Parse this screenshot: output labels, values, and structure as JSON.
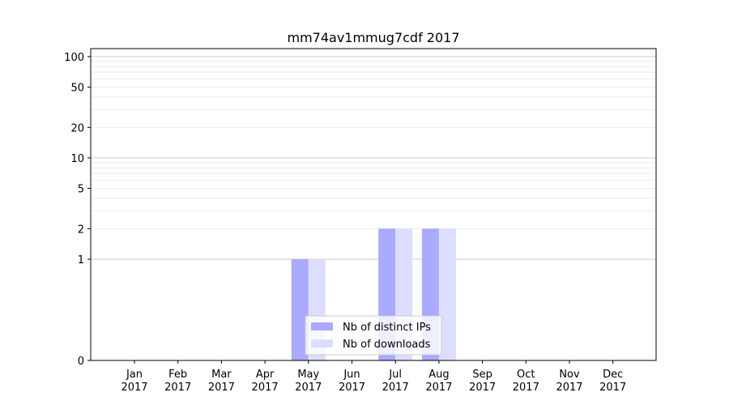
{
  "chart_data": {
    "type": "bar",
    "title": "mm74av1mmug7cdf 2017",
    "categories": [
      "Jan",
      "Feb",
      "Mar",
      "Apr",
      "May",
      "Jun",
      "Jul",
      "Aug",
      "Sep",
      "Oct",
      "Nov",
      "Dec"
    ],
    "category_years": [
      "2017",
      "2017",
      "2017",
      "2017",
      "2017",
      "2017",
      "2017",
      "2017",
      "2017",
      "2017",
      "2017",
      "2017"
    ],
    "series": [
      {
        "name": "Nb of distinct IPs",
        "values": [
          0,
          0,
          0,
          0,
          1,
          0,
          2,
          2,
          0,
          0,
          0,
          0
        ],
        "color": "#aaaaff"
      },
      {
        "name": "Nb of downloads",
        "values": [
          0,
          0,
          0,
          0,
          1,
          0,
          2,
          2,
          0,
          0,
          0,
          0
        ],
        "color": "#ddddff"
      }
    ],
    "y_scale": "symlog",
    "y_ticks": [
      0,
      1,
      2,
      5,
      10,
      20,
      50,
      100
    ],
    "y_tick_labels": [
      "0",
      "1",
      "2",
      "5",
      "10",
      "20",
      "50",
      "100"
    ],
    "ylim": [
      0,
      120
    ],
    "xlabel": "",
    "ylabel": "",
    "grid": true,
    "legend_position": "bottom-center"
  }
}
